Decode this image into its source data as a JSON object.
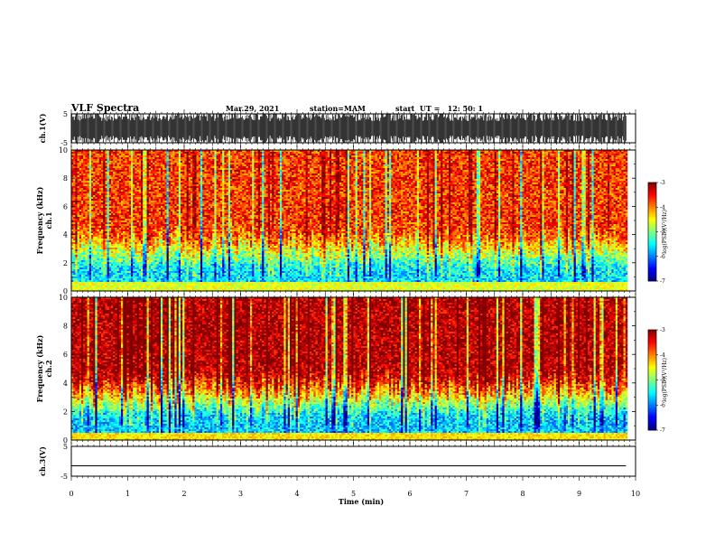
{
  "header": {
    "title": "VLF Spectra",
    "date": "Mar.29, 2021",
    "station": "station=MAM",
    "start": "start  UT =   12: 50: 1"
  },
  "chart_data": [
    {
      "type": "line",
      "panel": "ch1-waveform",
      "ylabel": "ch.1(V)",
      "ylim": [
        -5,
        5
      ],
      "yticks": [
        "5",
        "-5"
      ],
      "xlim": [
        0,
        10
      ]
    },
    {
      "type": "heatmap",
      "panel": "ch1-spectrogram",
      "ylabel_top": "ch.1",
      "ylabel": "Frequency  (kHz)",
      "ylim": [
        0,
        10
      ],
      "yticks": [
        "0",
        "2",
        "4",
        "6",
        "8",
        "10"
      ],
      "xlim": [
        0,
        10
      ],
      "data_end_min": 9.83,
      "colorbar": {
        "label": "log(PSD)(V²/Hz)",
        "range": [
          -7,
          -3
        ],
        "ticks": [
          "-3",
          "-4",
          "-5",
          "-6",
          "-7"
        ]
      },
      "description_bands": {
        "high_freq_level": -3.7,
        "low_freq_level": -5.6,
        "transition_kHz": 4.2
      }
    },
    {
      "type": "heatmap",
      "panel": "ch2-spectrogram",
      "ylabel_top": "ch.2",
      "ylabel": "Frequency  (kHz)",
      "ylim": [
        0,
        10
      ],
      "yticks": [
        "0",
        "2",
        "4",
        "6",
        "8",
        "10"
      ],
      "xlim": [
        0,
        10
      ],
      "data_end_min": 9.83,
      "colorbar": {
        "label": "log(PSD)(V²/Hz)",
        "range": [
          -7,
          -3
        ],
        "ticks": [
          "-3",
          "-4",
          "-5",
          "-6",
          "-7"
        ]
      },
      "description_bands": {
        "high_freq_level": -3.2,
        "low_freq_level": -5.7,
        "transition_kHz": 4.5
      }
    },
    {
      "type": "line",
      "panel": "ch3-waveform",
      "ylabel": "ch.3(V)",
      "ylim": [
        -5,
        5
      ],
      "yticks": [
        "5",
        "-5"
      ],
      "xlim": [
        0,
        10
      ],
      "x": [
        0,
        9.83
      ],
      "y": [
        -1.5,
        -1.5
      ]
    }
  ],
  "xaxis": {
    "label": "Time  (min)",
    "ticks": [
      "0",
      "1",
      "2",
      "3",
      "4",
      "5",
      "6",
      "7",
      "8",
      "9",
      "10"
    ]
  }
}
